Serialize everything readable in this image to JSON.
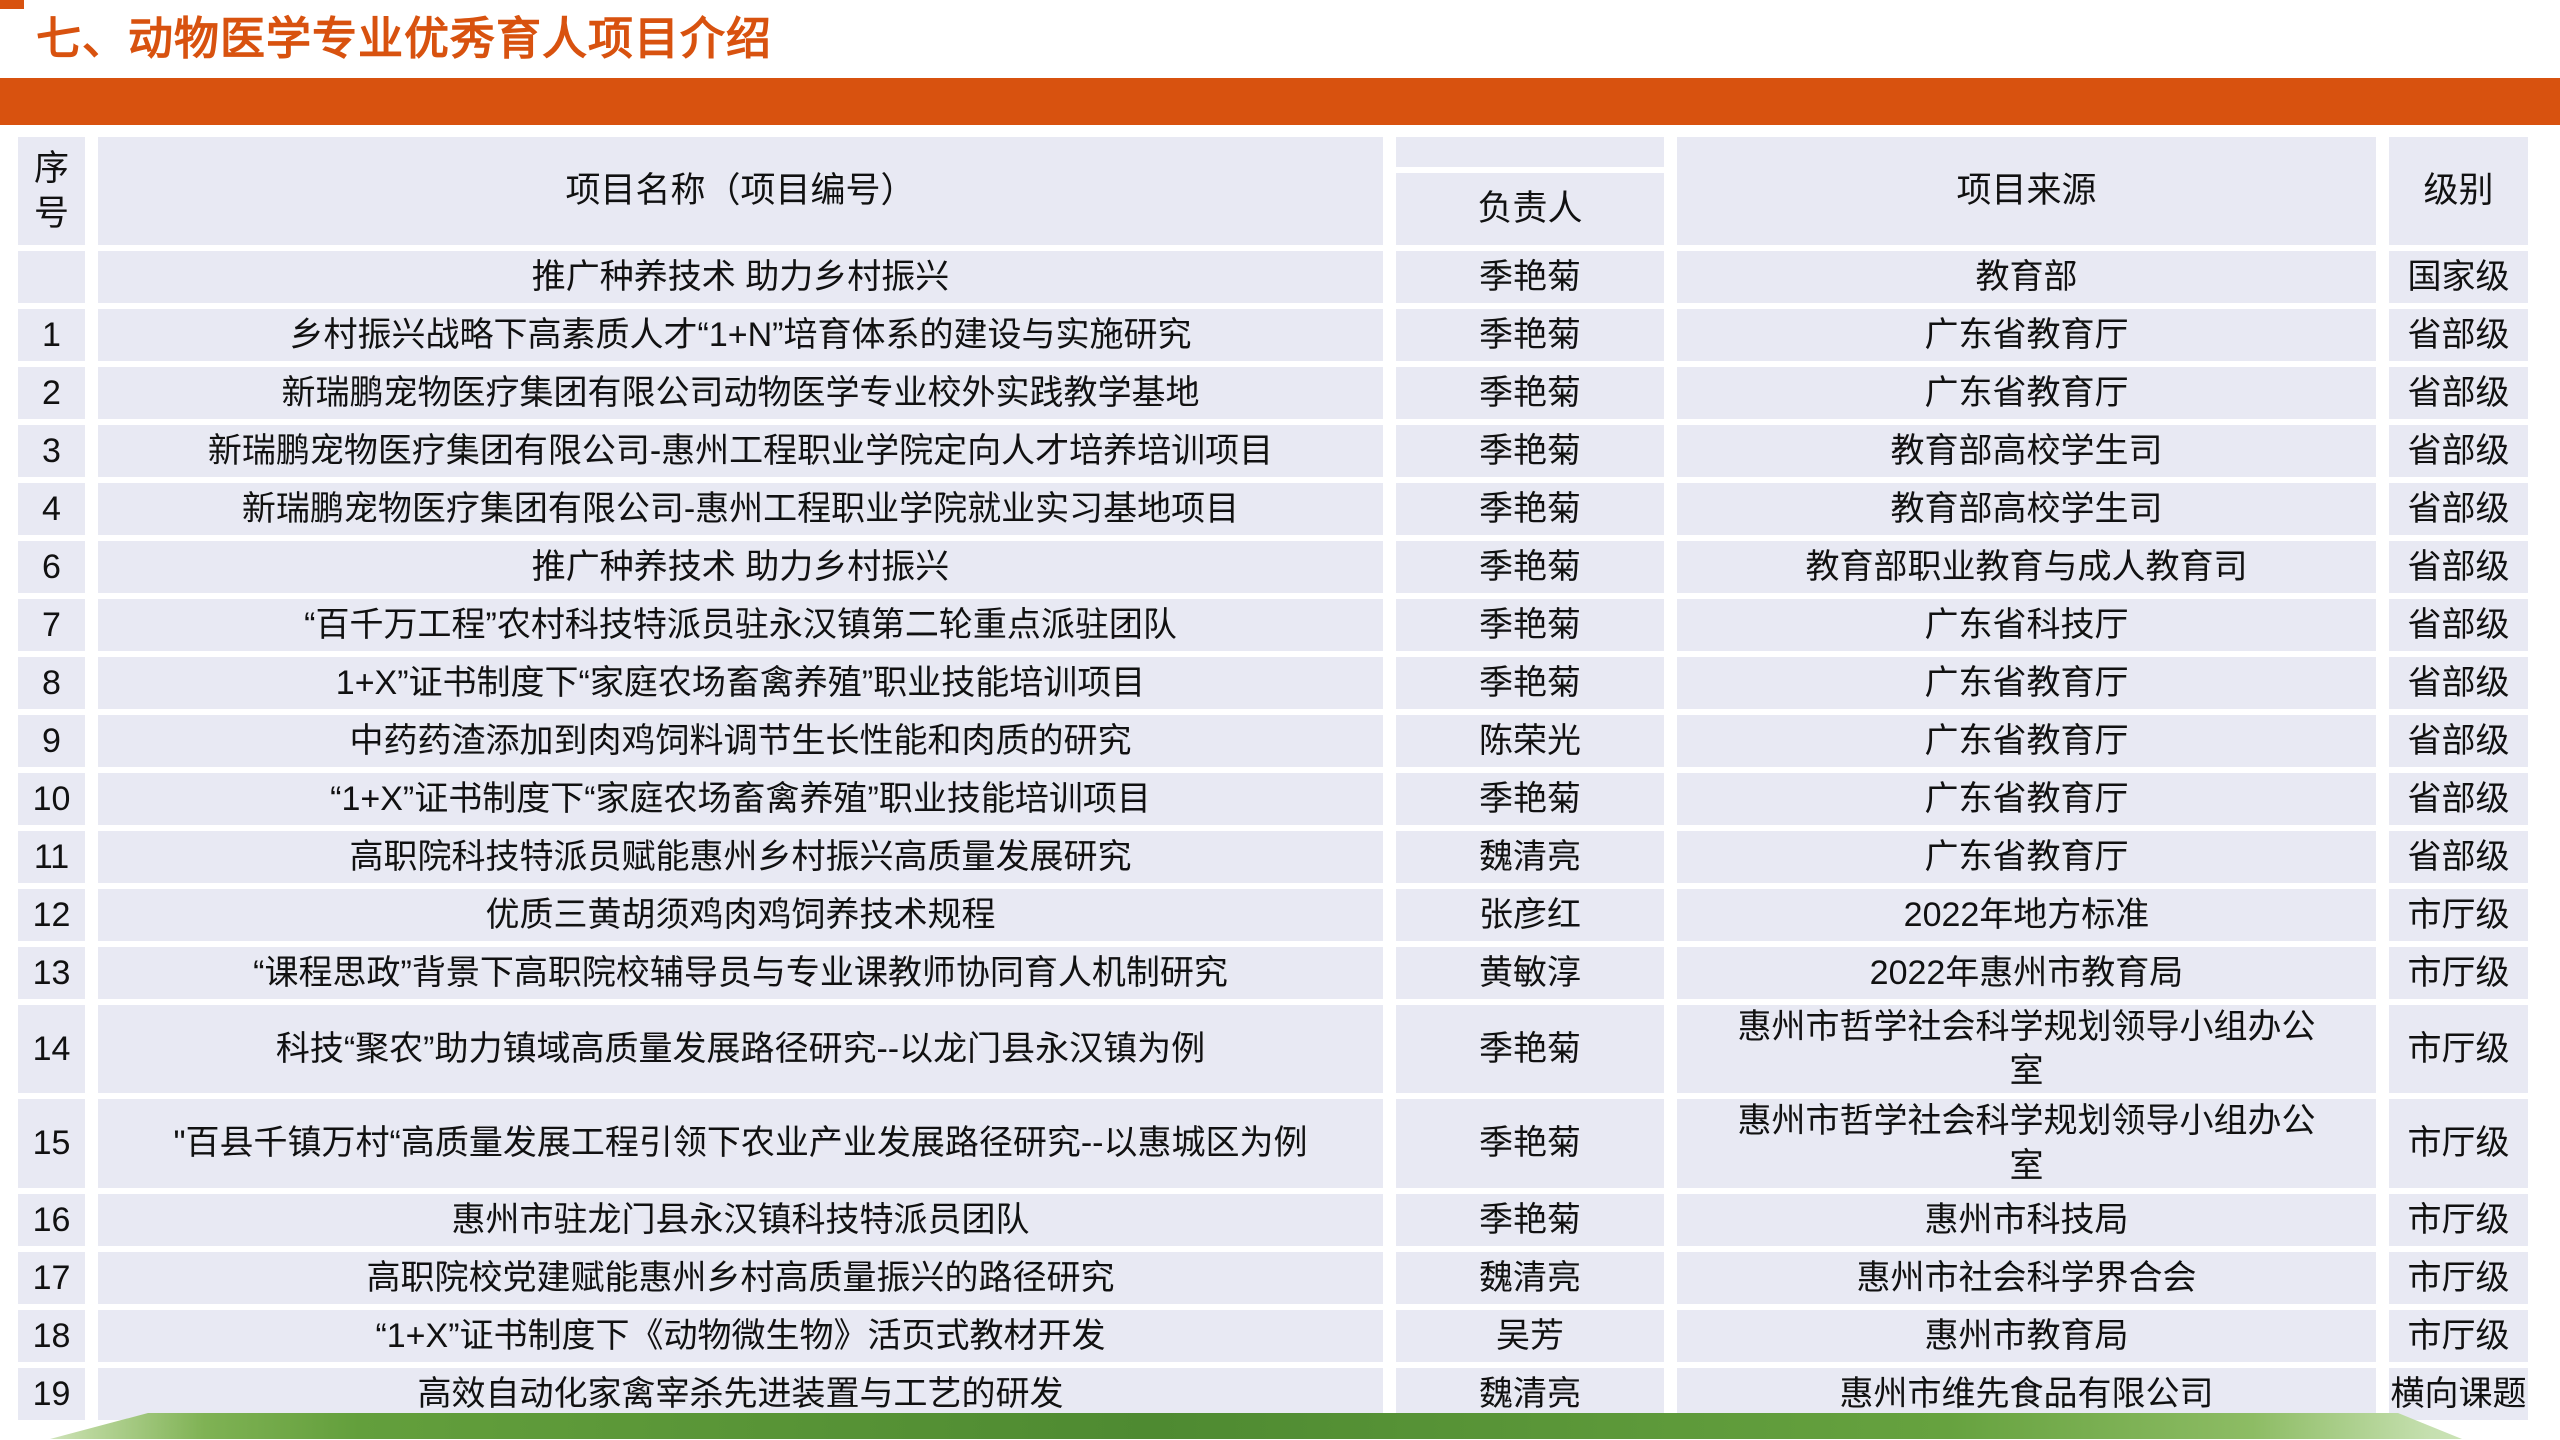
{
  "page": {
    "title": "七、动物医学专业优秀育人项目介绍"
  },
  "colors": {
    "accent_orange": "#d8520f",
    "row_bg": "#e8e9f3",
    "green_dark": "#4e8a31",
    "green_light": "#eaf3e3",
    "text": "#111111"
  },
  "table": {
    "headers": {
      "no": "序号",
      "name": "项目名称（项目编号）",
      "leader": "负责人",
      "source": "项目来源",
      "level": "级别"
    },
    "rows": [
      {
        "no": "",
        "name": "推广种养技术 助力乡村振兴",
        "leader": "季艳菊",
        "source": "教育部",
        "level": "国家级"
      },
      {
        "no": "1",
        "name": "乡村振兴战略下高素质人才“1+N”培育体系的建设与实施研究",
        "leader": "季艳菊",
        "source": "广东省教育厅",
        "level": "省部级"
      },
      {
        "no": "2",
        "name": "新瑞鹏宠物医疗集团有限公司动物医学专业校外实践教学基地",
        "leader": "季艳菊",
        "source": "广东省教育厅",
        "level": "省部级"
      },
      {
        "no": "3",
        "name": "新瑞鹏宠物医疗集团有限公司-惠州工程职业学院定向人才培养培训项目",
        "leader": "季艳菊",
        "source": "教育部高校学生司",
        "level": "省部级"
      },
      {
        "no": "4",
        "name": "新瑞鹏宠物医疗集团有限公司-惠州工程职业学院就业实习基地项目",
        "leader": "季艳菊",
        "source": "教育部高校学生司",
        "level": "省部级"
      },
      {
        "no": "6",
        "name": "推广种养技术 助力乡村振兴",
        "leader": "季艳菊",
        "source": "教育部职业教育与成人教育司",
        "level": "省部级"
      },
      {
        "no": "7",
        "name": "“百千万工程”农村科技特派员驻永汉镇第二轮重点派驻团队",
        "leader": "季艳菊",
        "source": "广东省科技厅",
        "level": "省部级"
      },
      {
        "no": "8",
        "name": "1+X”证书制度下“家庭农场畜禽养殖”职业技能培训项目",
        "leader": "季艳菊",
        "source": "广东省教育厅",
        "level": "省部级"
      },
      {
        "no": "9",
        "name": "中药药渣添加到肉鸡饲料调节生长性能和肉质的研究",
        "leader": "陈荣光",
        "source": "广东省教育厅",
        "level": "省部级"
      },
      {
        "no": "10",
        "name": "“1+X”证书制度下“家庭农场畜禽养殖”职业技能培训项目",
        "leader": "季艳菊",
        "source": "广东省教育厅",
        "level": "省部级"
      },
      {
        "no": "11",
        "name": "高职院科技特派员赋能惠州乡村振兴高质量发展研究",
        "leader": "魏清亮",
        "source": "广东省教育厅",
        "level": "省部级"
      },
      {
        "no": "12",
        "name": "优质三黄胡须鸡肉鸡饲养技术规程",
        "leader": "张彦红",
        "source": "2022年地方标准",
        "level": "市厅级"
      },
      {
        "no": "13",
        "name": "“课程思政”背景下高职院校辅导员与专业课教师协同育人机制研究",
        "leader": "黄敏淳",
        "source": "2022年惠州市教育局",
        "level": "市厅级"
      },
      {
        "no": "14",
        "name": "科技“聚农”助力镇域高质量发展路径研究--以龙门县永汉镇为例",
        "leader": "季艳菊",
        "source": "惠州市哲学社会科学规划领导小组办公室",
        "level": "市厅级"
      },
      {
        "no": "15",
        "name": "\"百县千镇万村“高质量发展工程引领下农业产业发展路径研究--以惠城区为例",
        "leader": "季艳菊",
        "source": "惠州市哲学社会科学规划领导小组办公室",
        "level": "市厅级"
      },
      {
        "no": "16",
        "name": "惠州市驻龙门县永汉镇科技特派员团队",
        "leader": "季艳菊",
        "source": "惠州市科技局",
        "level": "市厅级"
      },
      {
        "no": "17",
        "name": "高职院校党建赋能惠州乡村高质量振兴的路径研究",
        "leader": "魏清亮",
        "source": "惠州市社会科学界合会",
        "level": "市厅级"
      },
      {
        "no": "18",
        "name": "“1+X”证书制度下《动物微生物》活页式教材开发",
        "leader": "吴芳",
        "source": "惠州市教育局",
        "level": "市厅级"
      },
      {
        "no": "19",
        "name": "高效自动化家禽宰杀先进装置与工艺的研发",
        "leader": "魏清亮",
        "source": "惠州市维先食品有限公司",
        "level": "横向课题"
      }
    ]
  }
}
